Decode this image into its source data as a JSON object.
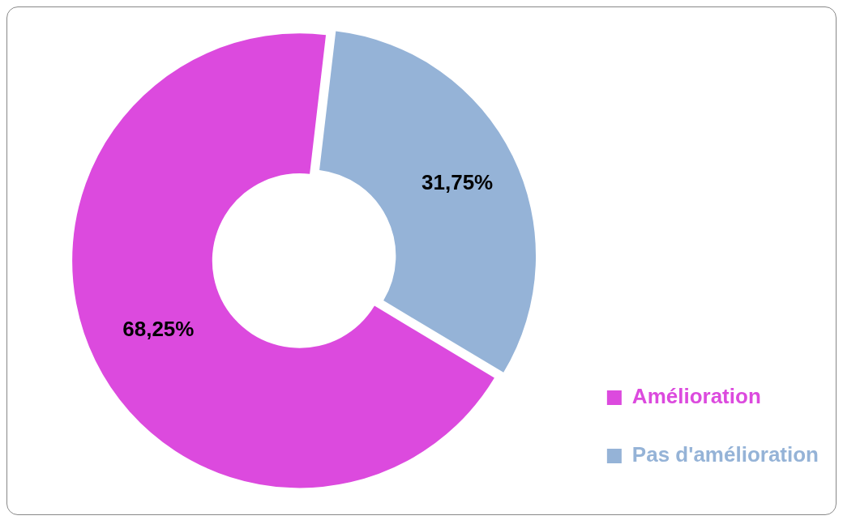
{
  "chart_data": {
    "type": "donut",
    "categories": [
      "Amélioration",
      "Pas d'amélioration"
    ],
    "values": [
      68.25,
      31.75
    ],
    "colors": [
      "#dc4ade",
      "#95b3d7"
    ],
    "value_labels": [
      "68,25%",
      "31,75%"
    ],
    "legend": "bottom right"
  }
}
